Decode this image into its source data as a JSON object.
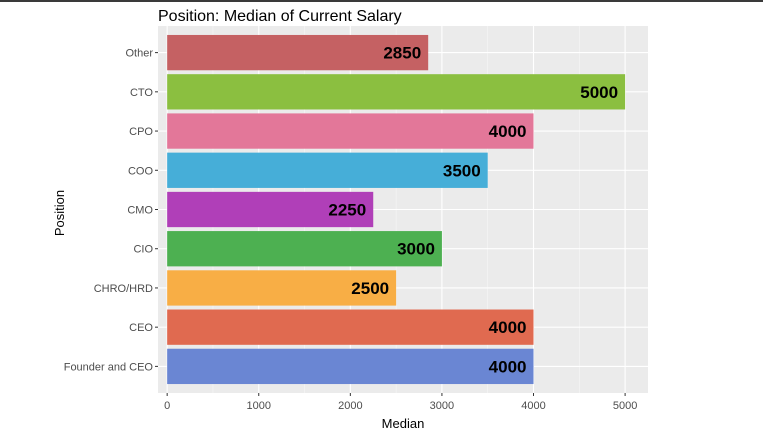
{
  "chart_data": {
    "type": "bar",
    "orientation": "horizontal",
    "title": "Position: Median of Current Salary",
    "xlabel": "Median",
    "ylabel": "Position",
    "xlim": [
      -100,
      5250
    ],
    "xticks": [
      0,
      1000,
      2000,
      3000,
      4000,
      5000
    ],
    "grid": true,
    "legend": "none",
    "categories": [
      "Founder and CEO",
      "CEO",
      "CHRO/HRD",
      "CIO",
      "CMO",
      "COO",
      "CPO",
      "CTO",
      "Other"
    ],
    "values": [
      4000,
      4000,
      2500,
      3000,
      2250,
      3500,
      4000,
      5000,
      2850
    ],
    "colors": [
      "#6a86d3",
      "#e06a50",
      "#f8ae45",
      "#4db051",
      "#b03fb8",
      "#46aed8",
      "#e37799",
      "#8bbf40",
      "#c56163"
    ]
  }
}
